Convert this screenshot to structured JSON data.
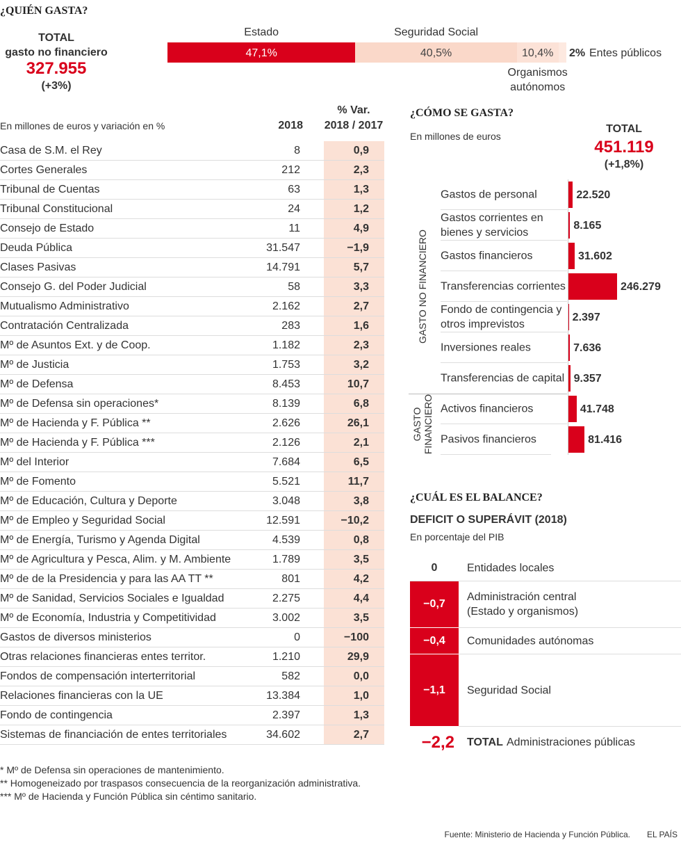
{
  "chart_data": [
    {
      "type": "stacked",
      "title": "¿QUIÉN GASTA?",
      "total_lines": [
        "TOTAL",
        "gasto no financiero"
      ],
      "total": "327.955",
      "total_change": "(+3%)",
      "categories": [
        "Estado",
        "Seguridad Social",
        "Organismos autónomos",
        "Entes públicos"
      ],
      "values": [
        47.1,
        40.5,
        10.4,
        2
      ],
      "value_labels": [
        "47,1%",
        "40,5%",
        "10,4%",
        "2%"
      ],
      "colors": [
        "#d9001b",
        "#fad8c9",
        "#fce2d7",
        "#fde9e0"
      ]
    },
    {
      "type": "barh",
      "title": "¿CÓMO SE GASTA?",
      "subtitle": "En millones de euros",
      "total_label": "TOTAL",
      "total": "451.119",
      "total_change": "(+1,8%)",
      "color": "#d9001b",
      "groups": [
        {
          "name": "GASTO NO FINANCIERO",
          "categories": [
            "Gastos de personal",
            "Gastos corrientes en bienes y servicios",
            "Gastos financieros",
            "Transferencias corrientes",
            "Fondo de contingencia y otros imprevistos",
            "Inversiones reales",
            "Transferencias de capital"
          ],
          "values": [
            22520,
            8165,
            31602,
            246279,
            2397,
            7636,
            9357
          ],
          "value_labels": [
            "22.520",
            "8.165",
            "31.602",
            "246.279",
            "2.397",
            "7.636",
            "9.357"
          ]
        },
        {
          "name": "GASTO FINANCIERO",
          "categories": [
            "Activos financieros",
            "Pasivos financieros"
          ],
          "values": [
            41748,
            81416
          ],
          "value_labels": [
            "41.748",
            "81.416"
          ]
        }
      ]
    },
    {
      "type": "column",
      "title": "¿CUÁL ES EL BALANCE?",
      "subtitle": "DEFICIT O SUPERÁVIT (2018)",
      "note": "En porcentaje del PIB",
      "color": "#d9001b",
      "categories": [
        "Entidades locales",
        "Administración central (Estado y organismos)",
        "Comunidades autónomas",
        "Seguridad Social"
      ],
      "values": [
        0,
        -0.7,
        -0.4,
        -1.1
      ],
      "value_labels": [
        "0",
        "−0,7",
        "−0,4",
        "−1,1"
      ],
      "total": "−2,2",
      "total_name": "TOTAL",
      "total_text": "Administraciones públicas"
    }
  ],
  "table": {
    "caption": "En millones de euros y variación en %",
    "year_header": "2018",
    "var_header": [
      "% Var.",
      "2018 / 2017"
    ],
    "rows": [
      [
        "Casa de S.M. el Rey",
        "8",
        "0,9"
      ],
      [
        "Cortes Generales",
        "212",
        "2,3"
      ],
      [
        "Tribunal de Cuentas",
        "63",
        "1,3"
      ],
      [
        "Tribunal Constitucional",
        "24",
        "1,2"
      ],
      [
        "Consejo de Estado",
        "11",
        "4,9"
      ],
      [
        "Deuda Pública",
        "31.547",
        "−1,9"
      ],
      [
        "Clases Pasivas",
        "14.791",
        "5,7"
      ],
      [
        "Consejo G. del Poder Judicial",
        "58",
        "3,3"
      ],
      [
        "Mutualismo Administrativo",
        "2.162",
        "2,7"
      ],
      [
        "Contratación Centralizada",
        "283",
        "1,6"
      ],
      [
        "Mº de Asuntos Ext. y de Coop.",
        "1.182",
        "2,3"
      ],
      [
        "Mº de Justicia",
        "1.753",
        "3,2"
      ],
      [
        "Mº de Defensa",
        "8.453",
        "10,7"
      ],
      [
        "Mº de Defensa sin operaciones*",
        "8.139",
        "6,8"
      ],
      [
        "Mº de Hacienda y F. Pública **",
        "2.626",
        "26,1"
      ],
      [
        "Mº de Hacienda y F. Pública ***",
        "2.126",
        "2,1"
      ],
      [
        "Mº del Interior",
        "7.684",
        "6,5"
      ],
      [
        "Mº de Fomento",
        "5.521",
        "11,7"
      ],
      [
        "Mº de Educación, Cultura y Deporte",
        "3.048",
        "3,8"
      ],
      [
        "Mº de Empleo y Seguridad Social",
        "12.591",
        "−10,2"
      ],
      [
        "Mº de Energía, Turismo y Agenda Digital",
        "4.539",
        "0,8"
      ],
      [
        "Mº de Agricultura y Pesca, Alim. y M. Ambiente",
        "1.789",
        "3,5"
      ],
      [
        "Mº de de la Presidencia y para las AA TT **",
        "801",
        "4,2"
      ],
      [
        "Mº de Sanidad, Servicios Sociales e Igualdad",
        "2.275",
        "4,4"
      ],
      [
        "Mº de Economía, Industria y Competitividad",
        "3.002",
        "3,5"
      ],
      [
        "Gastos de diversos ministerios",
        "0",
        "−100"
      ],
      [
        "Otras relaciones financieras entes territor.",
        "1.210",
        "29,9"
      ],
      [
        "Fondos de compensación interterritorial",
        "582",
        "0,0"
      ],
      [
        "Relaciones financieras con la UE",
        "13.384",
        "1,0"
      ],
      [
        "Fondo de contingencia",
        "2.397",
        "1,3"
      ],
      [
        "Sistemas de financiación de entes territoriales",
        "34.602",
        "2,7"
      ]
    ]
  },
  "footnotes": [
    "* Mº de Defensa sin operaciones de mantenimiento.",
    "** Homogeneizado por traspasos consecuencia de la reorganización administrativa.",
    "*** Mº de Hacienda y Función Pública sin céntimo sanitario."
  ],
  "source": "Fuente: Ministerio de Hacienda y Función Pública.",
  "brand": "EL PAÍS"
}
